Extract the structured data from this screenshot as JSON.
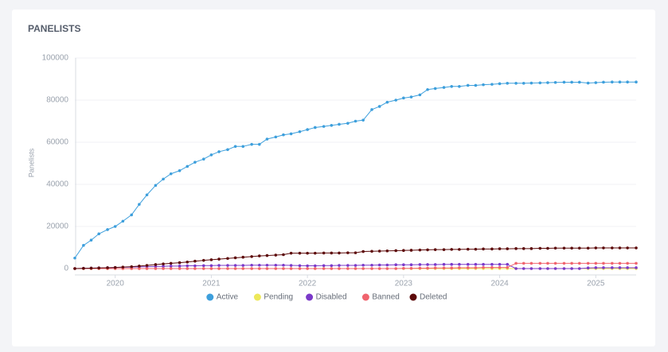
{
  "chart_data": {
    "type": "line",
    "title": "PANELISTS",
    "y_label": "Panelists",
    "x": [
      2019.58,
      2019.67,
      2019.75,
      2019.83,
      2019.92,
      2020,
      2020.08,
      2020.17,
      2020.25,
      2020.33,
      2020.42,
      2020.5,
      2020.58,
      2020.67,
      2020.75,
      2020.83,
      2020.92,
      2021,
      2021.08,
      2021.17,
      2021.25,
      2021.33,
      2021.42,
      2021.5,
      2021.58,
      2021.67,
      2021.75,
      2021.83,
      2021.92,
      2022,
      2022.08,
      2022.17,
      2022.25,
      2022.33,
      2022.42,
      2022.5,
      2022.58,
      2022.67,
      2022.75,
      2022.83,
      2022.92,
      2023,
      2023.08,
      2023.17,
      2023.25,
      2023.33,
      2023.42,
      2023.5,
      2023.58,
      2023.67,
      2023.75,
      2023.83,
      2023.92,
      2024,
      2024.08,
      2024.17,
      2024.25,
      2024.33,
      2024.42,
      2024.5,
      2024.58,
      2024.67,
      2024.75,
      2024.83,
      2024.92,
      2025,
      2025.08,
      2025.17,
      2025.25,
      2025.33,
      2025.42
    ],
    "xlim": [
      2019.58,
      2025.42
    ],
    "xticks": [
      2020,
      2021,
      2022,
      2023,
      2024,
      2025
    ],
    "ylim": [
      0,
      100000
    ],
    "yticks": [
      0,
      20000,
      40000,
      60000,
      80000,
      100000
    ],
    "grid": true,
    "series": [
      {
        "name": "Active",
        "color": "#3d9fdc",
        "values": [
          5000,
          11000,
          13500,
          16500,
          18500,
          20000,
          22500,
          25500,
          30500,
          35000,
          39500,
          42500,
          45000,
          46500,
          48500,
          50500,
          52000,
          54000,
          55500,
          56500,
          58000,
          58000,
          59000,
          59000,
          61500,
          62500,
          63500,
          64000,
          65000,
          66000,
          67000,
          67500,
          68000,
          68500,
          69000,
          70000,
          70500,
          75500,
          77000,
          79000,
          80000,
          81000,
          81500,
          82500,
          85000,
          85500,
          86000,
          86500,
          86500,
          87000,
          87000,
          87300,
          87500,
          87800,
          88000,
          88000,
          88000,
          88100,
          88200,
          88300,
          88400,
          88500,
          88500,
          88500,
          88100,
          88300,
          88500,
          88600,
          88600,
          88600,
          88600
        ]
      },
      {
        "name": "Pending",
        "color": "#ede85a",
        "values": [
          0,
          0,
          0,
          0,
          0,
          0,
          0,
          0,
          0,
          0,
          0,
          0,
          0,
          0,
          0,
          0,
          0,
          0,
          0,
          0,
          0,
          0,
          0,
          0,
          0,
          0,
          0,
          0,
          0,
          0,
          0,
          0,
          0,
          0,
          0,
          0,
          0,
          0,
          0,
          0,
          0,
          0,
          0,
          0,
          0,
          0,
          0,
          0,
          0,
          0,
          0,
          0,
          0,
          0,
          0,
          0,
          0,
          0,
          0,
          0,
          0,
          0,
          0,
          0,
          0,
          0,
          0,
          0,
          0,
          0,
          0
        ]
      },
      {
        "name": "Disabled",
        "color": "#7b3ac9",
        "values": [
          0,
          100,
          200,
          300,
          400,
          500,
          600,
          700,
          800,
          900,
          1000,
          1100,
          1200,
          1200,
          1300,
          1300,
          1400,
          1400,
          1500,
          1500,
          1500,
          1500,
          1600,
          1600,
          1600,
          1600,
          1600,
          1500,
          1400,
          1300,
          1300,
          1400,
          1400,
          1500,
          1500,
          1500,
          1600,
          1600,
          1700,
          1700,
          1800,
          1800,
          1800,
          1900,
          1900,
          1900,
          2000,
          2000,
          2000,
          2000,
          2000,
          2000,
          2000,
          2000,
          2000,
          0,
          0,
          0,
          0,
          0,
          0,
          0,
          0,
          0,
          300,
          400,
          400,
          400,
          400,
          400,
          400
        ]
      },
      {
        "name": "Banned",
        "color": "#f0646e",
        "values": [
          0,
          0,
          0,
          0,
          0,
          0,
          0,
          0,
          0,
          0,
          0,
          0,
          0,
          0,
          0,
          0,
          0,
          0,
          0,
          0,
          0,
          0,
          0,
          0,
          0,
          0,
          0,
          0,
          0,
          0,
          0,
          0,
          0,
          0,
          0,
          0,
          0,
          0,
          0,
          0,
          0,
          100,
          100,
          200,
          200,
          300,
          300,
          300,
          400,
          400,
          400,
          500,
          500,
          500,
          500,
          2500,
          2500,
          2500,
          2500,
          2500,
          2500,
          2500,
          2500,
          2500,
          2500,
          2500,
          2500,
          2500,
          2500,
          2500,
          2500
        ]
      },
      {
        "name": "Deleted",
        "color": "#5c0a0a",
        "values": [
          0,
          100,
          200,
          300,
          400,
          500,
          700,
          900,
          1200,
          1500,
          1900,
          2200,
          2500,
          2800,
          3100,
          3500,
          3900,
          4200,
          4500,
          4800,
          5100,
          5400,
          5700,
          6000,
          6200,
          6400,
          6600,
          7300,
          7300,
          7300,
          7300,
          7400,
          7400,
          7400,
          7500,
          7500,
          8100,
          8200,
          8300,
          8400,
          8500,
          8600,
          8700,
          8800,
          8900,
          9000,
          9000,
          9100,
          9100,
          9200,
          9200,
          9300,
          9300,
          9400,
          9400,
          9500,
          9500,
          9500,
          9600,
          9600,
          9700,
          9700,
          9700,
          9700,
          9700,
          9800,
          9800,
          9800,
          9800,
          9800,
          9800
        ]
      }
    ]
  }
}
